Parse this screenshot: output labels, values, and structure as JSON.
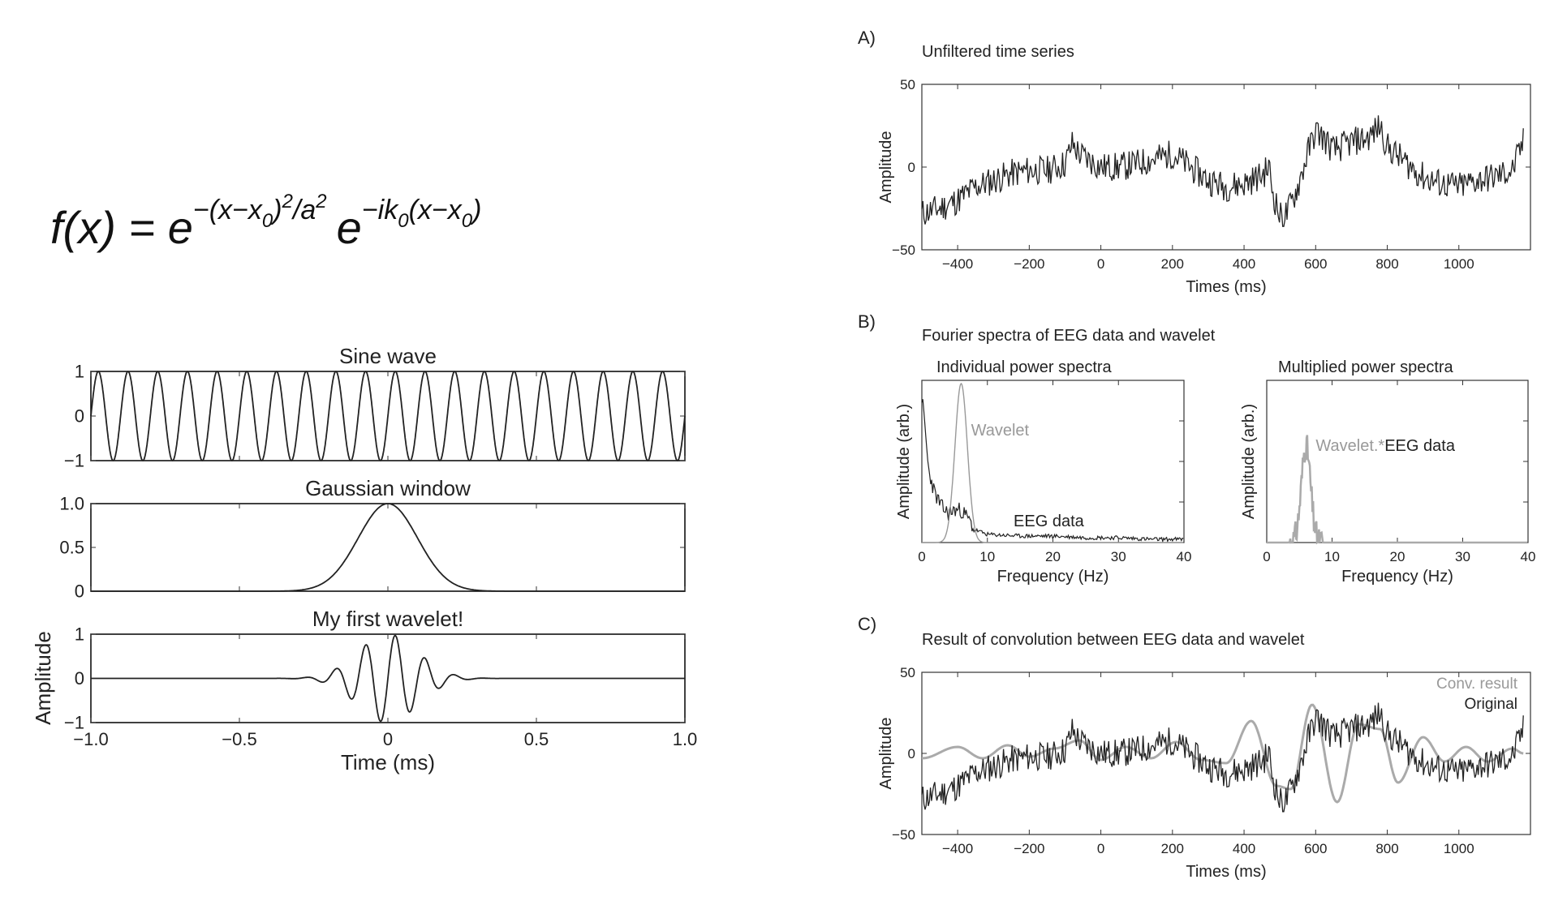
{
  "formula": {
    "lhs": "f(x) = ",
    "base1": "e",
    "exp1": "−(x−x",
    "exp1_sub": "0",
    "exp1_rest": ")",
    "exp1_pow": "2",
    "exp1_div": "/a",
    "exp1_div_pow": "2",
    "base2": "e",
    "exp2": "−ik",
    "exp2_sub": "0",
    "exp2_rest": "(x−x",
    "exp2_sub2": "0",
    "exp2_close": ")"
  },
  "panel_labels": {
    "a": "A)",
    "b": "B)",
    "c": "C)"
  },
  "colors": {
    "dark": "#222222",
    "gray": "#aaaaaa",
    "axis": "#333333"
  },
  "chart_data": [
    {
      "id": "sine",
      "type": "line",
      "title": "Sine wave",
      "xlim": [
        -1,
        1
      ],
      "ylim": [
        -1,
        1
      ],
      "yticks": [
        "−1",
        "0",
        "1"
      ],
      "ytick_values": [
        -1,
        0,
        1
      ],
      "series": [
        {
          "function": "sin(2*pi*10*t)",
          "cycles": 20
        }
      ]
    },
    {
      "id": "gauss",
      "type": "line",
      "title": "Gaussian window",
      "xlim": [
        -1,
        1
      ],
      "ylim": [
        0,
        1
      ],
      "yticks": [
        "0",
        "0.5",
        "1.0"
      ],
      "ytick_values": [
        0,
        0.5,
        1
      ],
      "series": [
        {
          "function": "exp(-t^2/(2*0.1^2))"
        }
      ]
    },
    {
      "id": "wavelet",
      "type": "line",
      "title": "My first wavelet!",
      "xlabel": "Time (ms)",
      "ylabel": "Amplitude",
      "xlim": [
        -1,
        1
      ],
      "ylim": [
        -1,
        1
      ],
      "xticks": [
        "−1.0",
        "−0.5",
        "0",
        "0.5",
        "1.0"
      ],
      "xtick_values": [
        -1,
        -0.5,
        0,
        0.5,
        1
      ],
      "yticks": [
        "−1",
        "0",
        "1"
      ],
      "ytick_values": [
        -1,
        0,
        1
      ],
      "series": [
        {
          "function": "sin(2*pi*10*t)*exp(-t^2/(2*0.1^2))"
        }
      ]
    },
    {
      "id": "unfiltered",
      "type": "line",
      "panel": "A)",
      "title": "Unfiltered time series",
      "xlabel": "Times (ms)",
      "ylabel": "Amplitude",
      "xlim": [
        -500,
        1200
      ],
      "ylim": [
        -50,
        50
      ],
      "xticks": [
        "−400",
        "−200",
        "0",
        "200",
        "400",
        "600",
        "800",
        "1000"
      ],
      "xtick_values": [
        -400,
        -200,
        0,
        200,
        400,
        600,
        800,
        1000
      ],
      "yticks": [
        "−50",
        "0",
        "50"
      ],
      "ytick_values": [
        -50,
        0,
        50
      ],
      "series": [
        {
          "style": "dark noisy",
          "x": [
            -500,
            -450,
            -400,
            -350,
            -300,
            -250,
            -200,
            -150,
            -100,
            -80,
            -60,
            -40,
            0,
            50,
            100,
            150,
            200,
            250,
            300,
            350,
            400,
            450,
            470,
            480,
            500,
            520,
            550,
            580,
            600,
            620,
            650,
            700,
            750,
            780,
            800,
            850,
            900,
            950,
            1000,
            1050,
            1100,
            1150,
            1180
          ],
          "y": [
            -28,
            -25,
            -20,
            -12,
            -8,
            -4,
            -2,
            -2,
            2,
            14,
            8,
            5,
            0,
            0,
            2,
            5,
            8,
            0,
            -8,
            -12,
            -10,
            -5,
            0,
            -15,
            -30,
            -28,
            -12,
            10,
            22,
            18,
            10,
            15,
            18,
            25,
            12,
            3,
            -6,
            -10,
            -12,
            -8,
            -6,
            -2,
            15
          ]
        }
      ]
    },
    {
      "id": "individual_spectra",
      "type": "line",
      "panel": "B)",
      "title": "Individual power spectra",
      "xlabel": "Frequency (Hz)",
      "ylabel": "Amplitude (arb.)",
      "xlim": [
        0,
        40
      ],
      "xticks": [
        "0",
        "10",
        "20",
        "30",
        "40"
      ],
      "xtick_values": [
        0,
        10,
        20,
        30,
        40
      ],
      "series": [
        {
          "name": "EEG data",
          "style": "dark noisy",
          "x": [
            0,
            0.5,
            1,
            2,
            3,
            4,
            5,
            6,
            7,
            8,
            10,
            15,
            20,
            25,
            30,
            35,
            40
          ],
          "y": [
            0.9,
            0.7,
            0.45,
            0.3,
            0.22,
            0.18,
            0.2,
            0.2,
            0.15,
            0.08,
            0.05,
            0.04,
            0.04,
            0.03,
            0.03,
            0.02,
            0.02
          ]
        },
        {
          "name": "Wavelet",
          "style": "gray gaussian",
          "x": [
            3,
            4,
            5,
            5.5,
            6,
            6.5,
            7,
            8,
            9
          ],
          "y": [
            0.0,
            0.1,
            0.55,
            0.85,
            0.98,
            0.85,
            0.55,
            0.1,
            0.0
          ]
        }
      ],
      "annotations": [
        "Wavelet",
        "EEG data"
      ]
    },
    {
      "id": "multiplied_spectra",
      "type": "line",
      "panel": "B)",
      "title": "Multiplied power spectra",
      "xlabel": "Frequency (Hz)",
      "ylabel": "Amplitude (arb.)",
      "xlim": [
        0,
        40
      ],
      "xticks": [
        "0",
        "10",
        "20",
        "30",
        "40"
      ],
      "xtick_values": [
        0,
        10,
        20,
        30,
        40
      ],
      "series": [
        {
          "name": "Wavelet.*EEG data",
          "style": "gray",
          "x": [
            0,
            3.5,
            4.5,
            5,
            5.5,
            6,
            6.5,
            7,
            7.5,
            8,
            40
          ],
          "y": [
            0,
            0,
            0.3,
            0.5,
            0.58,
            0.6,
            0.5,
            0.35,
            0.1,
            0,
            0
          ]
        }
      ],
      "annotation_parts": [
        "Wavelet.*",
        "EEG data"
      ]
    },
    {
      "id": "convolution",
      "type": "line",
      "panel": "C)",
      "title": "Result of convolution between EEG data and wavelet",
      "xlabel": "Times (ms)",
      "ylabel": "Amplitude",
      "xlim": [
        -500,
        1200
      ],
      "ylim": [
        -50,
        50
      ],
      "xticks": [
        "−400",
        "−200",
        "0",
        "200",
        "400",
        "600",
        "800",
        "1000"
      ],
      "xtick_values": [
        -400,
        -200,
        0,
        200,
        400,
        600,
        800,
        1000
      ],
      "yticks": [
        "−50",
        "0",
        "50"
      ],
      "ytick_values": [
        -50,
        0,
        50
      ],
      "legend": [
        "Conv. result",
        "Original"
      ],
      "series": [
        {
          "name": "Conv. result",
          "style": "gray smooth",
          "x": [
            -500,
            -400,
            -330,
            -260,
            -200,
            -130,
            -60,
            0,
            70,
            140,
            210,
            280,
            350,
            420,
            490,
            530,
            590,
            660,
            720,
            780,
            830,
            900,
            960,
            1020,
            1080,
            1150,
            1180
          ],
          "y": [
            -3,
            4,
            -3,
            5,
            -2,
            3,
            8,
            -4,
            4,
            -3,
            7,
            -4,
            -6,
            20,
            -20,
            -22,
            30,
            -30,
            18,
            15,
            -18,
            10,
            -5,
            4,
            -5,
            3,
            0
          ]
        },
        {
          "name": "Original",
          "style": "dark noisy",
          "x": [
            -500,
            -450,
            -400,
            -350,
            -300,
            -250,
            -200,
            -150,
            -100,
            -80,
            -60,
            -40,
            0,
            50,
            100,
            150,
            200,
            250,
            300,
            350,
            400,
            450,
            470,
            480,
            500,
            520,
            550,
            580,
            600,
            620,
            650,
            700,
            750,
            780,
            800,
            850,
            900,
            950,
            1000,
            1050,
            1100,
            1150,
            1180
          ],
          "y": [
            -28,
            -25,
            -20,
            -12,
            -8,
            -4,
            -2,
            -2,
            2,
            14,
            8,
            5,
            0,
            0,
            2,
            5,
            8,
            0,
            -8,
            -12,
            -10,
            -5,
            0,
            -15,
            -30,
            -28,
            -12,
            10,
            22,
            18,
            10,
            15,
            18,
            25,
            12,
            3,
            -6,
            -10,
            -12,
            -8,
            -6,
            -2,
            15
          ]
        }
      ]
    }
  ]
}
